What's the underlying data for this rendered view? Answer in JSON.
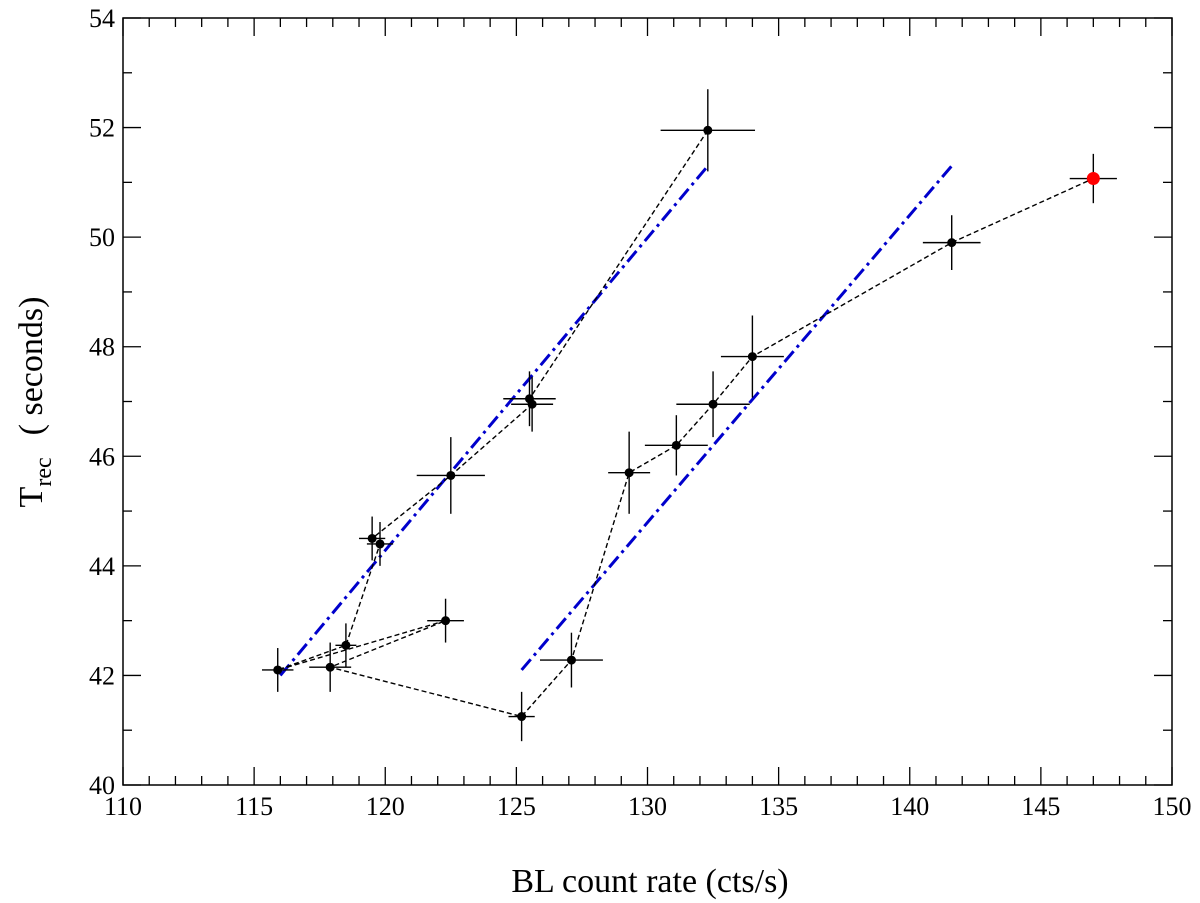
{
  "chart_data": {
    "type": "scatter",
    "xlabel": "BL count rate  (cts/s)",
    "ylabel_main": "T",
    "ylabel_sub": "rec",
    "ylabel_units": "( seconds)",
    "xlim": [
      110,
      150
    ],
    "ylim": [
      40,
      54
    ],
    "x_major_ticks": [
      110,
      115,
      120,
      125,
      130,
      135,
      140,
      145,
      150
    ],
    "y_major_ticks": [
      40,
      42,
      44,
      46,
      48,
      50,
      52,
      54
    ],
    "x_minor_step": 1,
    "y_minor_step": 1,
    "grid": false,
    "legend": "none",
    "colors": {
      "points": "#000000",
      "highlight": "#ff0000",
      "fit": "#0000cc",
      "path": "#000000"
    },
    "series": [
      {
        "points": [
          {
            "x": 132.3,
            "y": 51.95,
            "xerr": 1.8,
            "yerr": 0.75
          },
          {
            "x": 125.5,
            "y": 47.05,
            "xerr": 1.0,
            "yerr": 0.5
          },
          {
            "x": 125.6,
            "y": 46.95,
            "xerr": 0.8,
            "yerr": 0.5
          },
          {
            "x": 122.5,
            "y": 45.65,
            "xerr": 1.3,
            "yerr": 0.7
          },
          {
            "x": 119.5,
            "y": 44.5,
            "xerr": 0.5,
            "yerr": 0.4
          },
          {
            "x": 119.8,
            "y": 44.4,
            "xerr": 0.5,
            "yerr": 0.4
          },
          {
            "x": 118.5,
            "y": 42.55,
            "xerr": 0.4,
            "yerr": 0.4
          },
          {
            "x": 115.9,
            "y": 42.1,
            "xerr": 0.6,
            "yerr": 0.4
          },
          {
            "x": 122.3,
            "y": 43.0,
            "xerr": 0.7,
            "yerr": 0.4
          },
          {
            "x": 117.9,
            "y": 42.15,
            "xerr": 0.8,
            "yerr": 0.45
          },
          {
            "x": 125.2,
            "y": 41.25,
            "xerr": 0.5,
            "yerr": 0.45
          },
          {
            "x": 127.1,
            "y": 42.28,
            "xerr": 1.2,
            "yerr": 0.5
          },
          {
            "x": 129.3,
            "y": 45.7,
            "xerr": 0.8,
            "yerr": 0.75
          },
          {
            "x": 131.1,
            "y": 46.2,
            "xerr": 1.2,
            "yerr": 0.55
          },
          {
            "x": 132.5,
            "y": 46.95,
            "xerr": 1.4,
            "yerr": 0.6
          },
          {
            "x": 134.0,
            "y": 47.82,
            "xerr": 1.2,
            "yerr": 0.75
          },
          {
            "x": 141.6,
            "y": 49.9,
            "xerr": 1.1,
            "yerr": 0.5
          },
          {
            "x": 147.0,
            "y": 51.07,
            "xerr": 0.9,
            "yerr": 0.45,
            "highlight": true
          }
        ]
      }
    ],
    "fit_lines": [
      {
        "x": [
          116.0,
          132.3
        ],
        "y": [
          42.0,
          51.3
        ]
      },
      {
        "x": [
          125.2,
          141.6
        ],
        "y": [
          42.1,
          51.3
        ]
      }
    ]
  }
}
